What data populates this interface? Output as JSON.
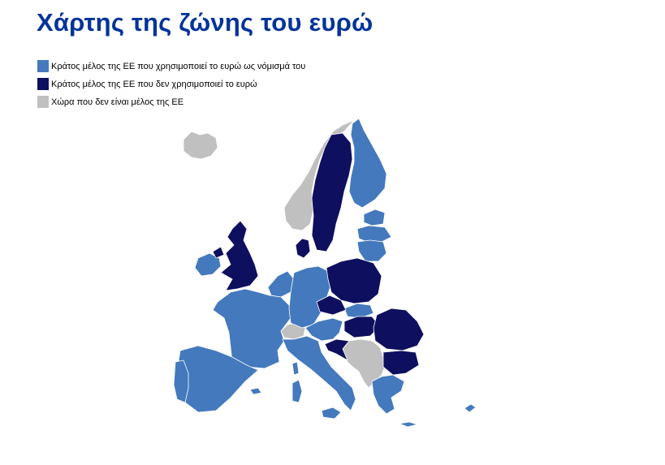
{
  "title": "Χάρτης της ζώνης του ευρώ",
  "colors": {
    "euro_member": "#4479bd",
    "eu_non_euro": "#0e0f5f",
    "non_eu": "#c0c0c0",
    "border": "#ffffff",
    "title": "#003399"
  },
  "legend": [
    {
      "key": "euro_member",
      "label": "Κράτος μέλος της ΕΕ που χρησιμοποιεί το ευρώ ως νόμισμά του"
    },
    {
      "key": "eu_non_euro",
      "label": "Κράτος μέλος της ΕΕ που δεν χρησιμοποιεί το ευρώ"
    },
    {
      "key": "non_eu",
      "label": "Χώρα που δεν είναι μέλος της ΕΕ"
    }
  ]
}
